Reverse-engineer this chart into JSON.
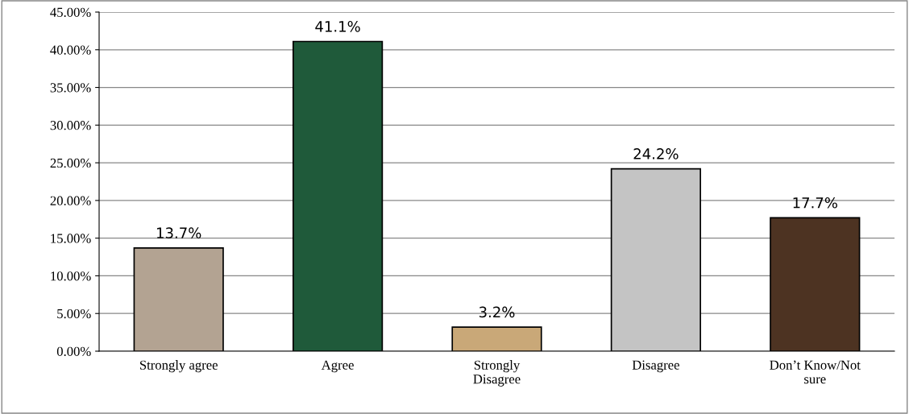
{
  "chart_data": {
    "type": "bar",
    "categories": [
      "Strongly agree",
      "Agree",
      "Strongly Disagree",
      "Disagree",
      "Don’t Know/Not sure"
    ],
    "values": [
      13.7,
      41.1,
      3.2,
      24.2,
      17.7
    ],
    "value_labels": [
      "13.7%",
      "41.1%",
      "3.2%",
      "24.2%",
      "17.7%"
    ],
    "colors": [
      "#b3a392",
      "#1f5a3a",
      "#c9a878",
      "#c4c4c4",
      "#4d3322"
    ],
    "ylim": [
      0,
      45
    ],
    "yticks": [
      {
        "value": 0,
        "label": "0.00%"
      },
      {
        "value": 5,
        "label": "5.00%"
      },
      {
        "value": 10,
        "label": "10.00%"
      },
      {
        "value": 15,
        "label": "15.00%"
      },
      {
        "value": 20,
        "label": "20.00%"
      },
      {
        "value": 25,
        "label": "25.00%"
      },
      {
        "value": 30,
        "label": "30.00%"
      },
      {
        "value": 35,
        "label": "35.00%"
      },
      {
        "value": 40,
        "label": "40.00%"
      },
      {
        "value": 45,
        "label": "45.00%"
      }
    ],
    "grid": "y"
  }
}
